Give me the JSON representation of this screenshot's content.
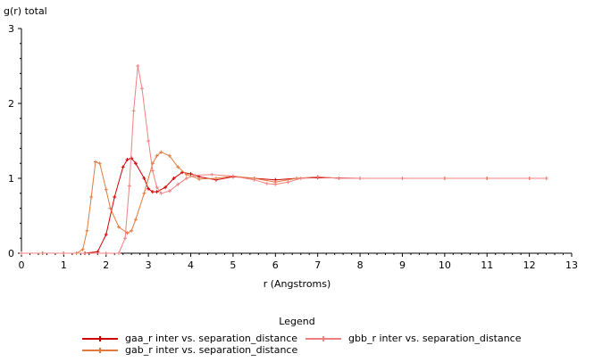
{
  "chart_data": {
    "type": "line",
    "ylabel": "g(r) total",
    "xlabel": "r (Angstroms)",
    "xlim": [
      0,
      13
    ],
    "ylim": [
      0,
      3
    ],
    "xticks": [
      "0",
      "1",
      "2",
      "3",
      "4",
      "5",
      "6",
      "7",
      "8",
      "9",
      "10",
      "11",
      "12",
      "13"
    ],
    "yticks": [
      "0",
      "1",
      "2",
      "3"
    ],
    "legend_title": "Legend",
    "legend_position": "bottom",
    "series": [
      {
        "name": "gaa_r inter vs. separation_distance",
        "color": "#d00000",
        "points": [
          [
            0,
            0
          ],
          [
            0.5,
            0
          ],
          [
            1.0,
            0
          ],
          [
            1.5,
            0
          ],
          [
            1.8,
            0.02
          ],
          [
            2.0,
            0.25
          ],
          [
            2.2,
            0.75
          ],
          [
            2.4,
            1.15
          ],
          [
            2.5,
            1.25
          ],
          [
            2.6,
            1.27
          ],
          [
            2.7,
            1.2
          ],
          [
            2.9,
            1.0
          ],
          [
            3.0,
            0.86
          ],
          [
            3.1,
            0.82
          ],
          [
            3.2,
            0.82
          ],
          [
            3.4,
            0.88
          ],
          [
            3.6,
            1.0
          ],
          [
            3.8,
            1.08
          ],
          [
            4.0,
            1.06
          ],
          [
            4.2,
            1.02
          ],
          [
            4.6,
            0.98
          ],
          [
            5.0,
            1.02
          ],
          [
            5.5,
            1.0
          ],
          [
            6.0,
            0.98
          ],
          [
            6.5,
            1.0
          ],
          [
            7.0,
            1.01
          ],
          [
            8.0,
            1.0
          ],
          [
            9.0,
            1.0
          ],
          [
            10.0,
            1.0
          ],
          [
            11.0,
            1.0
          ],
          [
            12.0,
            1.0
          ],
          [
            12.4,
            1.0
          ]
        ]
      },
      {
        "name": "gab_r inter vs. separation_distance",
        "color": "#e07a40",
        "points": [
          [
            0,
            0
          ],
          [
            0.5,
            0
          ],
          [
            1.0,
            0
          ],
          [
            1.3,
            0
          ],
          [
            1.45,
            0.05
          ],
          [
            1.55,
            0.3
          ],
          [
            1.65,
            0.75
          ],
          [
            1.75,
            1.22
          ],
          [
            1.85,
            1.2
          ],
          [
            2.0,
            0.85
          ],
          [
            2.1,
            0.6
          ],
          [
            2.3,
            0.35
          ],
          [
            2.5,
            0.27
          ],
          [
            2.6,
            0.3
          ],
          [
            2.7,
            0.45
          ],
          [
            2.9,
            0.8
          ],
          [
            3.1,
            1.2
          ],
          [
            3.2,
            1.3
          ],
          [
            3.3,
            1.35
          ],
          [
            3.5,
            1.3
          ],
          [
            3.7,
            1.15
          ],
          [
            3.9,
            1.05
          ],
          [
            4.2,
            0.99
          ],
          [
            4.6,
            1.0
          ],
          [
            5.0,
            1.03
          ],
          [
            5.5,
            1.0
          ],
          [
            6.0,
            0.95
          ],
          [
            6.5,
            1.0
          ],
          [
            7.0,
            1.02
          ],
          [
            7.5,
            1.0
          ],
          [
            8.0,
            1.0
          ],
          [
            9.0,
            1.0
          ],
          [
            10.0,
            1.0
          ],
          [
            11.0,
            1.0
          ],
          [
            12.0,
            1.0
          ],
          [
            12.4,
            1.0
          ]
        ]
      },
      {
        "name": "gbb_r inter vs. separation_distance",
        "color": "#f08080",
        "points": [
          [
            0,
            0
          ],
          [
            1.0,
            0
          ],
          [
            2.0,
            0
          ],
          [
            2.3,
            0
          ],
          [
            2.45,
            0.2
          ],
          [
            2.55,
            0.9
          ],
          [
            2.65,
            1.9
          ],
          [
            2.75,
            2.5
          ],
          [
            2.85,
            2.2
          ],
          [
            3.0,
            1.5
          ],
          [
            3.1,
            1.1
          ],
          [
            3.2,
            0.88
          ],
          [
            3.3,
            0.8
          ],
          [
            3.5,
            0.83
          ],
          [
            3.7,
            0.92
          ],
          [
            3.9,
            1.0
          ],
          [
            4.1,
            1.04
          ],
          [
            4.5,
            1.05
          ],
          [
            5.0,
            1.03
          ],
          [
            5.5,
            0.98
          ],
          [
            5.8,
            0.93
          ],
          [
            6.0,
            0.92
          ],
          [
            6.3,
            0.95
          ],
          [
            6.6,
            1.0
          ],
          [
            7.0,
            1.02
          ],
          [
            7.5,
            1.0
          ],
          [
            8.0,
            1.0
          ],
          [
            9.0,
            1.0
          ],
          [
            10.0,
            1.0
          ],
          [
            11.0,
            1.0
          ],
          [
            12.0,
            1.0
          ],
          [
            12.4,
            1.0
          ]
        ]
      }
    ]
  }
}
